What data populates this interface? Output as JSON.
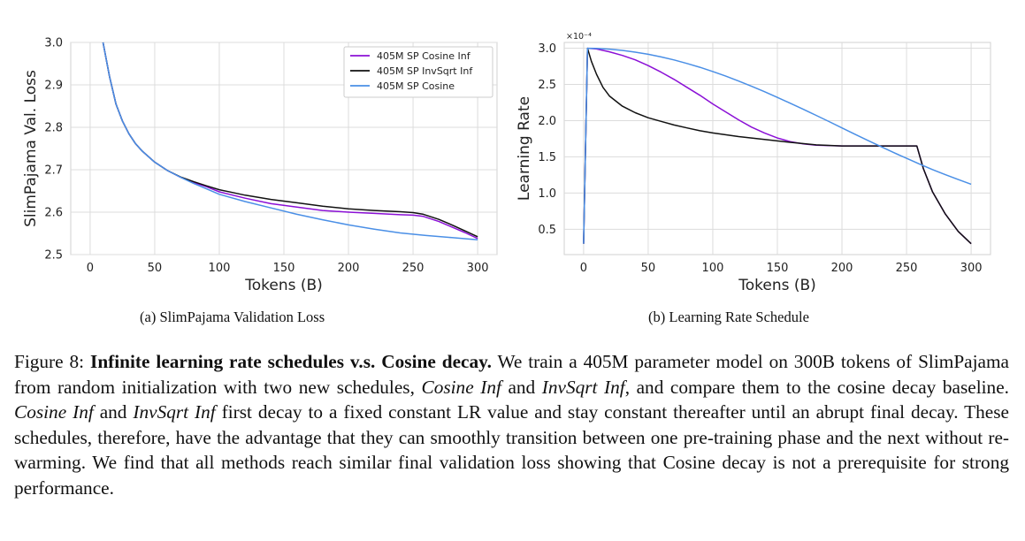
{
  "figure": {
    "subcaption_a": "(a) SlimPajama Validation Loss",
    "subcaption_b": "(b) Learning Rate Schedule"
  },
  "caption": {
    "label": "Figure 8: ",
    "title": "Infinite learning rate schedules v.s. Cosine decay.",
    "t1": " We train a 405M parameter model on 300B tokens of SlimPajama from random initialization with two new schedules, ",
    "i1": "Cosine Inf",
    "t2": " and ",
    "i2": "InvSqrt Inf",
    "t3": ", and compare them to the cosine decay baseline. ",
    "i3": "Cosine Inf",
    "t4": " and ",
    "i4": "InvSqrt Inf",
    "t5": " first decay to a fixed constant LR value and stay constant thereafter until an abrupt final decay. These schedules, therefore, have the advantage that they can smoothly transition between one pre-training phase and the next without re-warming. We find that all methods reach similar final validation loss showing that Cosine decay is not a prerequisite for strong performance."
  },
  "chart_data": [
    {
      "type": "line",
      "xlabel": "Tokens (B)",
      "ylabel": "SlimPajama Val. Loss",
      "xlim": [
        -15,
        315
      ],
      "ylim": [
        2.5,
        3.0
      ],
      "xticks": [
        0,
        50,
        100,
        150,
        200,
        250,
        300
      ],
      "yticks": [
        2.5,
        2.6,
        2.7,
        2.8,
        2.9,
        3.0
      ],
      "ytick_labels": [
        "2.5",
        "2.6",
        "2.7",
        "2.8",
        "2.9",
        "3.0"
      ],
      "grid": true,
      "legend": "top-right",
      "series": [
        {
          "name": "405M SP Cosine Inf",
          "color": "#8b10d6",
          "x": [
            10,
            15,
            20,
            25,
            30,
            35,
            40,
            50,
            60,
            70,
            80,
            90,
            100,
            120,
            140,
            160,
            180,
            200,
            220,
            240,
            250,
            258,
            270,
            280,
            290,
            300
          ],
          "y": [
            3.0,
            2.92,
            2.855,
            2.815,
            2.785,
            2.762,
            2.745,
            2.718,
            2.698,
            2.682,
            2.67,
            2.66,
            2.648,
            2.633,
            2.62,
            2.612,
            2.604,
            2.6,
            2.597,
            2.594,
            2.593,
            2.59,
            2.578,
            2.565,
            2.552,
            2.538
          ]
        },
        {
          "name": "405M SP InvSqrt Inf",
          "color": "#111111",
          "x": [
            10,
            15,
            20,
            25,
            30,
            35,
            40,
            50,
            60,
            70,
            80,
            90,
            100,
            120,
            140,
            160,
            180,
            200,
            220,
            240,
            250,
            258,
            270,
            280,
            290,
            300
          ],
          "y": [
            3.0,
            2.92,
            2.855,
            2.815,
            2.785,
            2.762,
            2.745,
            2.718,
            2.698,
            2.683,
            2.672,
            2.662,
            2.653,
            2.64,
            2.63,
            2.622,
            2.614,
            2.608,
            2.604,
            2.601,
            2.599,
            2.595,
            2.583,
            2.57,
            2.556,
            2.542
          ]
        },
        {
          "name": "405M SP Cosine",
          "color": "#4a8fe6",
          "x": [
            10,
            15,
            20,
            25,
            30,
            35,
            40,
            50,
            60,
            70,
            80,
            90,
            100,
            120,
            140,
            160,
            180,
            200,
            220,
            240,
            260,
            280,
            300
          ],
          "y": [
            3.0,
            2.92,
            2.855,
            2.815,
            2.785,
            2.762,
            2.745,
            2.718,
            2.698,
            2.682,
            2.668,
            2.655,
            2.642,
            2.625,
            2.61,
            2.595,
            2.582,
            2.57,
            2.56,
            2.551,
            2.545,
            2.54,
            2.535
          ]
        }
      ]
    },
    {
      "type": "line",
      "xlabel": "Tokens (B)",
      "ylabel": "Learning Rate",
      "scale_label": "×10⁻⁴",
      "xlim": [
        -15,
        315
      ],
      "ylim": [
        0.15,
        3.08
      ],
      "xticks": [
        0,
        50,
        100,
        150,
        200,
        250,
        300
      ],
      "yticks": [
        0.5,
        1.0,
        1.5,
        2.0,
        2.5,
        3.0
      ],
      "ytick_labels": [
        "0.5",
        "1.0",
        "1.5",
        "2.0",
        "2.5",
        "3.0"
      ],
      "grid": true,
      "series": [
        {
          "name": "Cosine Inf",
          "color": "#8b10d6",
          "x": [
            0,
            3,
            10,
            20,
            30,
            40,
            50,
            60,
            70,
            80,
            90,
            100,
            110,
            120,
            130,
            140,
            150,
            160,
            170,
            180,
            200,
            220,
            240,
            258,
            263,
            270,
            280,
            290,
            300
          ],
          "y": [
            0.3,
            3.0,
            2.99,
            2.95,
            2.9,
            2.84,
            2.76,
            2.67,
            2.57,
            2.46,
            2.35,
            2.23,
            2.12,
            2.01,
            1.91,
            1.83,
            1.76,
            1.71,
            1.68,
            1.66,
            1.65,
            1.65,
            1.65,
            1.65,
            1.34,
            1.02,
            0.71,
            0.47,
            0.3
          ]
        },
        {
          "name": "InvSqrt Inf",
          "color": "#111111",
          "x": [
            0,
            3,
            6,
            10,
            15,
            20,
            30,
            40,
            50,
            60,
            70,
            80,
            90,
            100,
            120,
            140,
            160,
            180,
            200,
            220,
            240,
            258,
            263,
            270,
            280,
            290,
            300
          ],
          "y": [
            0.3,
            3.0,
            2.82,
            2.64,
            2.46,
            2.34,
            2.2,
            2.11,
            2.04,
            1.99,
            1.94,
            1.9,
            1.86,
            1.83,
            1.78,
            1.74,
            1.7,
            1.665,
            1.65,
            1.65,
            1.65,
            1.65,
            1.34,
            1.02,
            0.71,
            0.47,
            0.3
          ]
        },
        {
          "name": "Cosine",
          "color": "#4a8fe6",
          "x": [
            0,
            3,
            10,
            20,
            30,
            40,
            50,
            60,
            70,
            80,
            90,
            100,
            110,
            120,
            130,
            140,
            150,
            160,
            170,
            180,
            190,
            200,
            210,
            220,
            230,
            240,
            250,
            260,
            270,
            280,
            290,
            300
          ],
          "y": [
            0.3,
            3.0,
            2.997,
            2.987,
            2.97,
            2.946,
            2.916,
            2.88,
            2.838,
            2.79,
            2.737,
            2.678,
            2.615,
            2.547,
            2.475,
            2.4,
            2.321,
            2.24,
            2.157,
            2.073,
            1.987,
            1.9,
            1.813,
            1.727,
            1.643,
            1.559,
            1.479,
            1.4,
            1.325,
            1.254,
            1.186,
            1.122
          ]
        }
      ]
    }
  ]
}
